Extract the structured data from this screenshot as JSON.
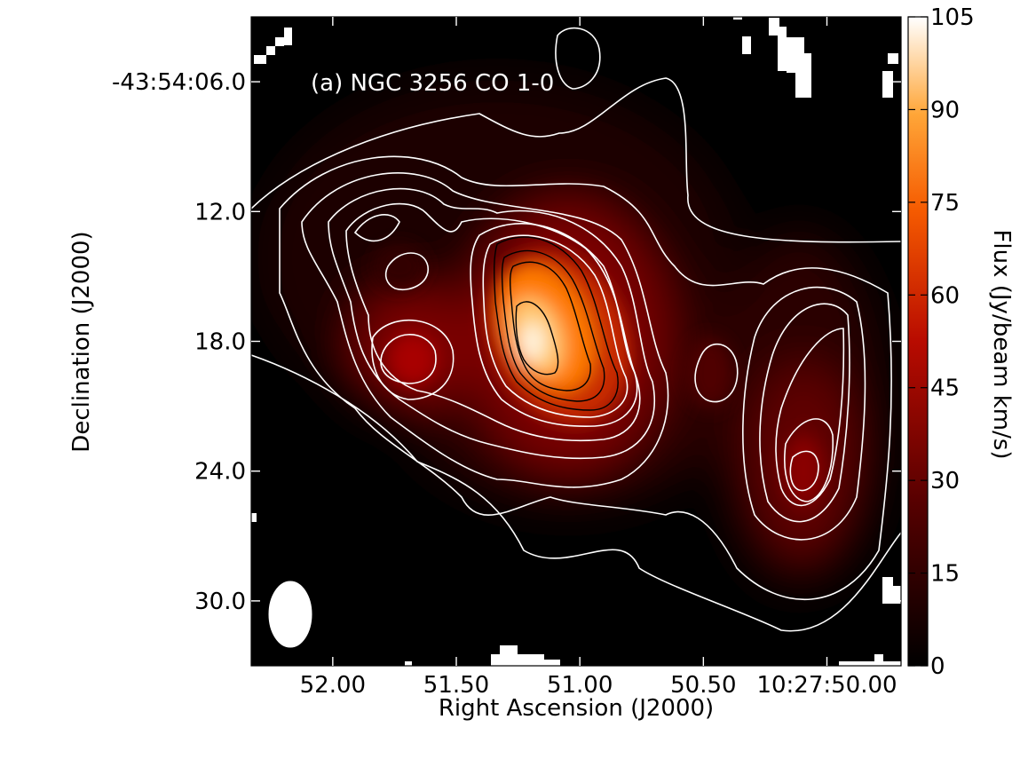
{
  "chart_data": {
    "type": "heatmap",
    "title": "",
    "annotation": "(a) NGC 3256 CO 1-0",
    "xlabel": "Right Ascension (J2000)",
    "ylabel": "Declination (J2000)",
    "colorbar_label": "Flux (Jy/beam km/s)",
    "colormap": "gist_heat",
    "x_axis": {
      "unit": "RA seconds (10h27m)",
      "range": [
        52.33,
        49.7
      ],
      "ticks": [
        {
          "value": 52.0,
          "label": "52.00"
        },
        {
          "value": 51.5,
          "label": "51.50"
        },
        {
          "value": 51.0,
          "label": "51.00"
        },
        {
          "value": 50.5,
          "label": "50.50"
        },
        {
          "value": 50.0,
          "label": "10:27:50.00"
        }
      ]
    },
    "y_axis": {
      "unit": "Dec arcsec (-43:54:xx)",
      "range": [
        33.0,
        3.0
      ],
      "ticks": [
        {
          "value": 6.0,
          "label": "-43:54:06.0"
        },
        {
          "value": 12.0,
          "label": "12.0"
        },
        {
          "value": 18.0,
          "label": "18.0"
        },
        {
          "value": 24.0,
          "label": "24.0"
        },
        {
          "value": 30.0,
          "label": "30.0"
        }
      ]
    },
    "colorbar": {
      "range": [
        0,
        105
      ],
      "ticks": [
        0,
        15,
        30,
        45,
        60,
        75,
        90,
        105
      ]
    },
    "peaks": [
      {
        "ra": 51.19,
        "dec": 17.7,
        "flux": 105
      },
      {
        "ra": 51.72,
        "dec": 18.8,
        "flux": 52
      },
      {
        "ra": 50.0,
        "dec": 24.4,
        "flux": 46
      },
      {
        "ra": 51.85,
        "dec": 13.4,
        "flux": 26
      },
      {
        "ra": 50.8,
        "dec": 19.6,
        "flux": 28
      }
    ],
    "grid": false,
    "beam": {
      "shape": "ellipse",
      "location": "bottom-left"
    }
  }
}
